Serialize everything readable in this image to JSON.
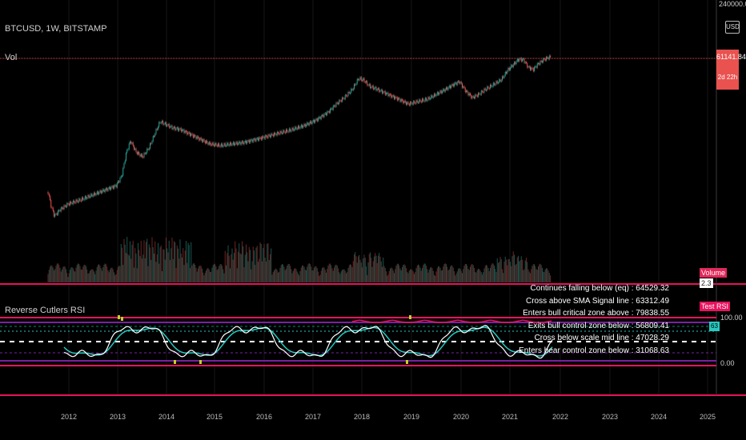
{
  "chart_header": {
    "symbol": "BTCUSD, 1W, BITSTAMP",
    "volume_label": "Vol"
  },
  "price_scale": {
    "top_value": "240000.00",
    "currency_button": "USD",
    "current_price": "61141.84",
    "countdown": "2d 22h"
  },
  "volume_tags": {
    "label": "Volume",
    "value": "2.3"
  },
  "indicator": {
    "title": "Reverse Cutlers RSI",
    "test_tag": "Test RSI",
    "rsi_tag": "63",
    "scale_top": "100.00",
    "scale_bottom": "0.00",
    "events": [
      "Continues falling below (eq) : 64529.32",
      "Cross above SMA Signal line : 63312.49",
      "Enters bull critical zone above : 79838.55",
      "Exits bull control zone below : 56809.41",
      "Cross below scale mid line : 47028.29",
      "Enters bear control zone below : 31068.63"
    ]
  },
  "time_axis": [
    "2012",
    "2013",
    "2014",
    "2015",
    "2016",
    "2017",
    "2018",
    "2019",
    "2020",
    "2021",
    "2022",
    "2023",
    "2024",
    "2025"
  ],
  "colors": {
    "background": "#000000",
    "price_line": "#e9524f",
    "bull": "#26a69a",
    "bear": "#ef5350",
    "rsi": "#ffffff",
    "signal": "#27c9c0",
    "pane_border": "#e8125e",
    "zone_purple": "#7b1fa2"
  }
}
